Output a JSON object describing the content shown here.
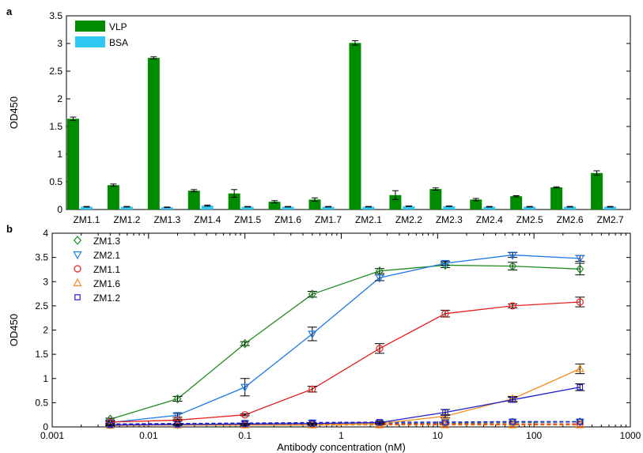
{
  "panel_a_label": "a",
  "panel_b_label": "b",
  "chart_data": [
    {
      "type": "bar",
      "panel": "a",
      "title": "",
      "xlabel": "",
      "ylabel": "OD450",
      "ylim": [
        0,
        3.5
      ],
      "yticks": [
        0,
        0.5,
        1,
        1.5,
        2,
        2.5,
        3,
        3.5
      ],
      "categories": [
        "ZM1.1",
        "ZM1.2",
        "ZM1.3",
        "ZM1.4",
        "ZM1.5",
        "ZM1.6",
        "ZM1.7",
        "ZM2.1",
        "ZM2.2",
        "ZM2.3",
        "ZM2.4",
        "ZM2.5",
        "ZM2.6",
        "ZM2.7"
      ],
      "series": [
        {
          "name": "VLP",
          "color": "#008c00",
          "values": [
            1.64,
            0.44,
            2.74,
            0.34,
            0.29,
            0.14,
            0.18,
            3.01,
            0.26,
            0.37,
            0.18,
            0.24,
            0.4,
            0.66
          ],
          "errors": [
            0.03,
            0.02,
            0.02,
            0.02,
            0.07,
            0.02,
            0.03,
            0.04,
            0.08,
            0.02,
            0.02,
            0.01,
            0.01,
            0.04
          ]
        },
        {
          "name": "BSA",
          "color": "#2ec8f2",
          "values": [
            0.05,
            0.05,
            0.04,
            0.07,
            0.05,
            0.05,
            0.05,
            0.05,
            0.06,
            0.06,
            0.05,
            0.05,
            0.05,
            0.05
          ],
          "errors": [
            0.005,
            0.005,
            0.005,
            0.01,
            0.005,
            0.005,
            0.005,
            0.005,
            0.005,
            0.005,
            0.005,
            0.005,
            0.005,
            0.005
          ]
        }
      ],
      "legend_placement": "top-left",
      "grid": false
    },
    {
      "type": "line",
      "panel": "b",
      "title": "",
      "xlabel": "Antibody concentration (nM)",
      "ylabel": "OD450",
      "xscale": "log",
      "xlim": [
        0.001,
        1000
      ],
      "ylim": [
        0,
        4
      ],
      "xticks": [
        0.001,
        0.01,
        0.1,
        1,
        10,
        100,
        1000
      ],
      "xtick_labels": [
        "0.001",
        "0.01",
        "0.1",
        "1",
        "10",
        "100",
        "1000"
      ],
      "yticks": [
        0,
        0.5,
        1,
        1.5,
        2,
        2.5,
        3,
        3.5,
        4
      ],
      "x": [
        0.004,
        0.02,
        0.1,
        0.5,
        2.5,
        12,
        60,
        300
      ],
      "series": [
        {
          "name": "ZM1.3",
          "color": "#1e8c1e",
          "marker": "diamond",
          "values": [
            0.16,
            0.58,
            1.72,
            2.74,
            3.22,
            3.34,
            3.32,
            3.26
          ],
          "errors": [
            0.02,
            0.05,
            0.04,
            0.06,
            0.05,
            0.05,
            0.08,
            0.12
          ],
          "control_values": [
            0.05,
            0.05,
            0.06,
            0.06,
            0.07,
            0.08,
            0.09,
            0.1
          ]
        },
        {
          "name": "ZM2.1",
          "color": "#1e78e6",
          "marker": "triangle-down",
          "values": [
            0.09,
            0.24,
            0.82,
            1.92,
            3.08,
            3.38,
            3.55,
            3.48
          ],
          "errors": [
            0.02,
            0.04,
            0.18,
            0.14,
            0.06,
            0.04,
            0.05,
            0.06
          ],
          "control_values": [
            0.06,
            0.07,
            0.07,
            0.08,
            0.08,
            0.09,
            0.1,
            0.1
          ]
        },
        {
          "name": "ZM1.1",
          "color": "#e61e1e",
          "marker": "circle",
          "values": [
            0.1,
            0.14,
            0.25,
            0.78,
            1.62,
            2.34,
            2.5,
            2.58
          ],
          "errors": [
            0.02,
            0.02,
            0.02,
            0.06,
            0.1,
            0.07,
            0.04,
            0.1
          ],
          "control_values": [
            0.05,
            0.05,
            0.05,
            0.05,
            0.06,
            0.06,
            0.06,
            0.06
          ]
        },
        {
          "name": "ZM1.6",
          "color": "#f08c1e",
          "marker": "triangle-up",
          "values": [
            0.03,
            0.04,
            0.04,
            0.04,
            0.07,
            0.22,
            0.58,
            1.2
          ],
          "errors": [
            0.01,
            0.01,
            0.01,
            0.01,
            0.02,
            0.03,
            0.05,
            0.1
          ],
          "control_values": [
            0.04,
            0.04,
            0.04,
            0.04,
            0.04,
            0.04,
            0.04,
            0.04
          ]
        },
        {
          "name": "ZM1.2",
          "color": "#1e1ec8",
          "marker": "square",
          "values": [
            0.04,
            0.05,
            0.06,
            0.07,
            0.09,
            0.3,
            0.56,
            0.82
          ],
          "errors": [
            0.01,
            0.01,
            0.01,
            0.01,
            0.02,
            0.06,
            0.05,
            0.07
          ],
          "control_values": [
            0.06,
            0.07,
            0.08,
            0.09,
            0.1,
            0.1,
            0.11,
            0.11
          ]
        }
      ],
      "legend_placement": "top-left",
      "grid": false
    }
  ]
}
